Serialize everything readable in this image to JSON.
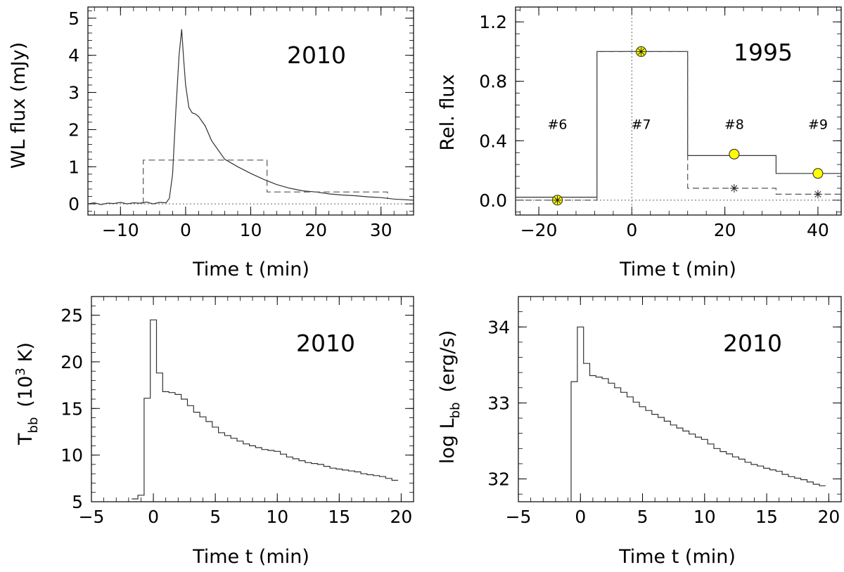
{
  "colors": {
    "axis": "#000000",
    "line": "#333333",
    "dashed": "#555555",
    "marker_fill": "#ffff00"
  },
  "panels": [
    {
      "id": "wl-flux-2010",
      "year": "2010",
      "xlabel": "Time t (min)",
      "ylabel": "WL flux (mJy)",
      "xlim": [
        -15,
        35
      ],
      "ylim": [
        -0.3,
        5.3
      ],
      "xticks": [
        -10,
        0,
        10,
        20,
        30
      ],
      "xtick_labels": [
        "−10",
        "0",
        "10",
        "20",
        "30"
      ],
      "yticks": [
        0,
        1,
        2,
        3,
        4,
        5
      ],
      "ytick_labels": [
        "0",
        "1",
        "2",
        "3",
        "4",
        "5"
      ]
    },
    {
      "id": "rel-flux-1995",
      "year": "1995",
      "xlabel": "Time t (min)",
      "ylabel": "Rel. flux",
      "xlim": [
        -25,
        45
      ],
      "ylim": [
        -0.1,
        1.3
      ],
      "xticks": [
        -20,
        0,
        20,
        40
      ],
      "xtick_labels": [
        "−20",
        "0",
        "20",
        "40"
      ],
      "yticks": [
        0.0,
        0.4,
        0.8,
        1.2
      ],
      "ytick_labels": [
        "0.0",
        "0.4",
        "0.8",
        "1.2"
      ],
      "markers": [
        "#6",
        "#7",
        "#8",
        "#9"
      ]
    },
    {
      "id": "tbb-2010",
      "year": "2010",
      "xlabel": "Time t (min)",
      "ylabel_main": "T",
      "ylabel_sub": "bb",
      "ylabel_rest_1": "(10",
      "ylabel_sup": "3",
      "ylabel_rest_2": "K)",
      "xlim": [
        -5,
        21
      ],
      "ylim": [
        5,
        27
      ],
      "xticks": [
        -5,
        0,
        5,
        10,
        15,
        20
      ],
      "xtick_labels": [
        "−5",
        "0",
        "5",
        "10",
        "15",
        "20"
      ],
      "yticks": [
        5,
        10,
        15,
        20,
        25
      ],
      "ytick_labels": [
        "5",
        "10",
        "15",
        "20",
        "25"
      ]
    },
    {
      "id": "lbb-2010",
      "year": "2010",
      "xlabel": "Time t (min)",
      "ylabel_main": "log L",
      "ylabel_sub": "bb",
      "ylabel_rest": "(erg/s)",
      "xlim": [
        -5,
        21
      ],
      "ylim": [
        31.7,
        34.4
      ],
      "xticks": [
        -5,
        0,
        5,
        10,
        15,
        20
      ],
      "xtick_labels": [
        "−5",
        "0",
        "5",
        "10",
        "15",
        "20"
      ],
      "yticks": [
        32,
        33,
        34
      ],
      "ytick_labels": [
        "32",
        "33",
        "34"
      ]
    }
  ],
  "chart_data": [
    {
      "type": "line",
      "title": "2010",
      "xlabel": "Time t (min)",
      "ylabel": "WL flux (mJy)",
      "xlim": [
        -15,
        35
      ],
      "ylim": [
        -0.3,
        5.3
      ],
      "series": [
        {
          "name": "WL flux",
          "style": "solid",
          "x": [
            -15,
            -14,
            -13,
            -12,
            -11,
            -10,
            -9,
            -8,
            -7,
            -6,
            -5,
            -4,
            -3,
            -2.5,
            -2,
            -1.5,
            -1,
            -0.6,
            -0.3,
            0,
            0.5,
            1,
            1.5,
            2,
            3,
            4,
            5,
            6,
            8,
            10,
            12,
            14,
            16,
            18,
            20,
            22,
            24,
            26,
            28,
            30,
            32,
            35
          ],
          "y": [
            0.0,
            0.03,
            -0.02,
            0.02,
            0.01,
            0.04,
            0.0,
            0.03,
            0.02,
            0.05,
            0.0,
            0.04,
            0.03,
            0.15,
            0.8,
            2.5,
            4.0,
            4.7,
            3.9,
            3.2,
            2.6,
            2.45,
            2.42,
            2.35,
            2.1,
            1.7,
            1.45,
            1.2,
            1.0,
            0.82,
            0.66,
            0.52,
            0.42,
            0.35,
            0.32,
            0.27,
            0.24,
            0.22,
            0.19,
            0.17,
            0.13,
            0.1
          ]
        },
        {
          "name": "1995 binned (dashed)",
          "style": "dashed",
          "x": [
            -6.5,
            -6.5,
            12.5,
            12.5,
            31,
            31
          ],
          "y": [
            0,
            1.18,
            1.18,
            0.32,
            0.32,
            0.13
          ]
        }
      ]
    },
    {
      "type": "line",
      "title": "1995",
      "xlabel": "Time t (min)",
      "ylabel": "Rel. flux",
      "xlim": [
        -25,
        45
      ],
      "ylim": [
        -0.1,
        1.3
      ],
      "series": [
        {
          "name": "solid step",
          "style": "solid",
          "x": [
            -25,
            -7.5,
            -7.5,
            12,
            12,
            31,
            31,
            45
          ],
          "y": [
            0.02,
            0.02,
            1.0,
            1.0,
            0.3,
            0.3,
            0.18,
            0.18
          ]
        },
        {
          "name": "dashed step",
          "style": "dashed",
          "x": [
            -25,
            -7.5,
            -7.5,
            12,
            12,
            31,
            31,
            45
          ],
          "y": [
            0.0,
            0.0,
            1.0,
            1.0,
            0.08,
            0.08,
            0.04,
            0.04
          ]
        },
        {
          "name": "yellow circles",
          "style": "circle",
          "x": [
            -16,
            2,
            22,
            40
          ],
          "y": [
            0.0,
            1.0,
            0.31,
            0.18
          ]
        },
        {
          "name": "asterisks",
          "style": "asterisk",
          "x": [
            -16,
            2,
            22,
            40
          ],
          "y": [
            0.0,
            1.0,
            0.08,
            0.04
          ]
        }
      ],
      "annotations": [
        {
          "text": "#6",
          "x": -16,
          "y": 0.48
        },
        {
          "text": "#7",
          "x": 2,
          "y": 0.48
        },
        {
          "text": "#8",
          "x": 22,
          "y": 0.48
        },
        {
          "text": "#9",
          "x": 40,
          "y": 0.48
        }
      ]
    },
    {
      "type": "line",
      "title": "2010",
      "xlabel": "Time t (min)",
      "ylabel": "T_bb (10^3 K)",
      "xlim": [
        -5,
        21
      ],
      "ylim": [
        5,
        27
      ],
      "series": [
        {
          "name": "T_bb",
          "style": "step",
          "x": [
            -1.5,
            -1.0,
            -0.5,
            0.0,
            0.5,
            1.0,
            1.5,
            2.0,
            2.5,
            3.0,
            3.5,
            4.0,
            4.5,
            5.0,
            5.5,
            6.0,
            6.5,
            7.0,
            7.5,
            8.0,
            8.5,
            9.0,
            9.5,
            10.0,
            10.5,
            11.0,
            11.5,
            12.0,
            12.5,
            13.0,
            13.5,
            14.0,
            14.5,
            15.0,
            15.5,
            16.0,
            16.5,
            17.0,
            17.5,
            18.0,
            18.5,
            19.0,
            19.5
          ],
          "y": [
            5.3,
            5.7,
            16.1,
            24.5,
            18.8,
            16.8,
            16.7,
            16.5,
            16.0,
            15.3,
            14.6,
            14.1,
            13.6,
            13.0,
            12.4,
            12.1,
            11.8,
            11.5,
            11.2,
            11.0,
            10.8,
            10.6,
            10.5,
            10.4,
            10.1,
            9.8,
            9.6,
            9.4,
            9.2,
            9.1,
            9.0,
            8.8,
            8.6,
            8.5,
            8.4,
            8.3,
            8.2,
            8.0,
            7.9,
            7.8,
            7.7,
            7.5,
            7.3
          ]
        }
      ]
    },
    {
      "type": "line",
      "title": "2010",
      "xlabel": "Time t (min)",
      "ylabel": "log L_bb (erg/s)",
      "xlim": [
        -5,
        21
      ],
      "ylim": [
        31.7,
        34.4
      ],
      "series": [
        {
          "name": "log L_bb",
          "style": "step",
          "x": [
            -1.0,
            -0.5,
            0.0,
            0.5,
            1.0,
            1.5,
            2.0,
            2.5,
            3.0,
            3.5,
            4.0,
            4.5,
            5.0,
            5.5,
            6.0,
            6.5,
            7.0,
            7.5,
            8.0,
            8.5,
            9.0,
            9.5,
            10.0,
            10.5,
            11.0,
            11.5,
            12.0,
            12.5,
            13.0,
            13.5,
            14.0,
            14.5,
            15.0,
            15.5,
            16.0,
            16.5,
            17.0,
            17.5,
            18.0,
            18.5,
            19.0,
            19.5
          ],
          "y": [
            31.7,
            33.28,
            34.0,
            33.52,
            33.36,
            33.34,
            33.32,
            33.26,
            33.2,
            33.14,
            33.08,
            33.01,
            32.95,
            32.9,
            32.85,
            32.81,
            32.76,
            32.71,
            32.67,
            32.63,
            32.59,
            32.55,
            32.52,
            32.46,
            32.4,
            32.36,
            32.33,
            32.29,
            32.26,
            32.22,
            32.19,
            32.17,
            32.14,
            32.12,
            32.1,
            32.06,
            32.03,
            32.01,
            31.99,
            31.96,
            31.93,
            31.91
          ]
        }
      ]
    }
  ]
}
